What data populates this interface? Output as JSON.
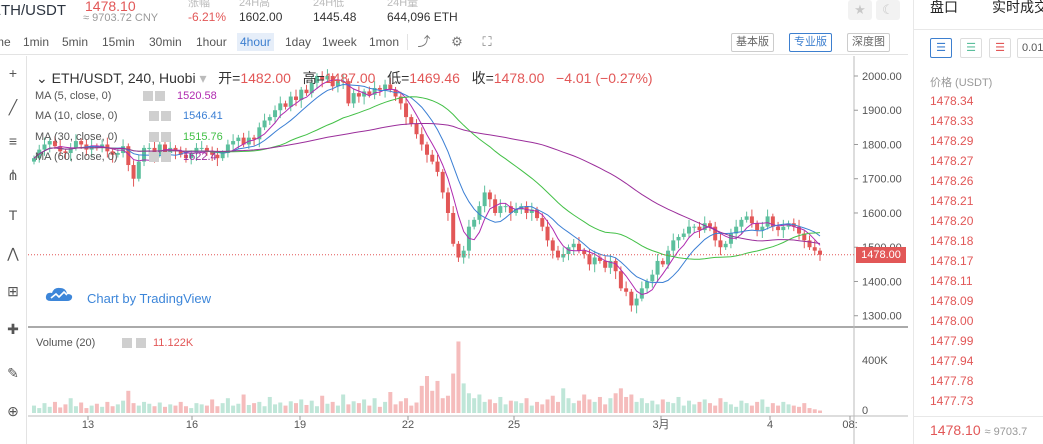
{
  "ticker": {
    "pair": "ETH/USDT",
    "last_price": "1478.10",
    "cny": "≈ 9703.72 CNY",
    "stats": [
      {
        "label": "涨幅",
        "value": "-6.21%",
        "color": "#e25757"
      },
      {
        "label": "24H高",
        "value": "1602.00"
      },
      {
        "label": "24H低",
        "value": "1445.48"
      },
      {
        "label": "24H量",
        "value": "644,096 ETH"
      }
    ]
  },
  "toolbar": {
    "timeframes": [
      "me",
      "1min",
      "5min",
      "15min",
      "30min",
      "1hour",
      "4hour",
      "1day",
      "1week",
      "1mon"
    ],
    "active_timeframe": "4hour",
    "versions": [
      "基本版",
      "专业版",
      "深度图"
    ],
    "active_version": "专业版"
  },
  "legend": {
    "symbol": "ETH/USDT, 240, Huobi",
    "open_label": "开=",
    "open": "1482.00",
    "high_label": "高=",
    "high": "1487.00",
    "low_label": "低=",
    "low": "1469.46",
    "close_label": "收=",
    "close": "1478.00",
    "change": "−4.01 (−0.27%)"
  },
  "indicators": [
    {
      "name": "MA (5, close, 0)",
      "value": "1520.58",
      "color": "#b02bb0"
    },
    {
      "name": "MA (10, close, 0)",
      "value": "1546.41",
      "color": "#3b7fd4"
    },
    {
      "name": "MA (30, close, 0)",
      "value": "1515.76",
      "color": "#43c047"
    },
    {
      "name": "MA (60, close, 0)",
      "value": "1622.4",
      "color": "#9b2e9b"
    }
  ],
  "volume": {
    "name": "Volume (20)",
    "value": "11.122K"
  },
  "brand": "Chart by TradingView",
  "price_badge": "1478.00",
  "chart_data": {
    "type": "candlestick",
    "y_ticks": [
      "2000.00",
      "1900.00",
      "1800.00",
      "1700.00",
      "1600.00",
      "1500.00",
      "1400.00",
      "1300.00"
    ],
    "ylim": [
      1270,
      2035
    ],
    "x_ticks": [
      "13",
      "16",
      "19",
      "22",
      "25",
      "3月",
      "4",
      "08:"
    ],
    "volume_ticks": [
      "400K",
      "0"
    ],
    "volume_max": 600,
    "colors": {
      "up": "#5cbf9d",
      "down": "#e25757",
      "ma5": "#b02bb0",
      "ma10": "#3b7fd4",
      "ma30": "#43c047",
      "ma60": "#9b2e9b"
    },
    "closes": [
      1760,
      1785,
      1800,
      1810,
      1795,
      1780,
      1775,
      1790,
      1810,
      1800,
      1785,
      1795,
      1790,
      1800,
      1780,
      1770,
      1775,
      1795,
      1740,
      1700,
      1750,
      1790,
      1790,
      1770,
      1800,
      1775,
      1790,
      1780,
      1770,
      1760,
      1775,
      1790,
      1790,
      1780,
      1770,
      1760,
      1775,
      1800,
      1810,
      1820,
      1800,
      1820,
      1815,
      1850,
      1870,
      1880,
      1900,
      1920,
      1910,
      1940,
      1930,
      1960,
      1950,
      1980,
      2000,
      1990,
      2000,
      1970,
      1985,
      1985,
      1920,
      1950,
      1940,
      1955,
      1945,
      1965,
      1960,
      1975,
      1960,
      1940,
      1920,
      1880,
      1860,
      1830,
      1800,
      1770,
      1750,
      1720,
      1660,
      1600,
      1510,
      1470,
      1490,
      1560,
      1580,
      1620,
      1660,
      1640,
      1600,
      1620,
      1620,
      1600,
      1610,
      1620,
      1600,
      1610,
      1585,
      1560,
      1520,
      1490,
      1470,
      1480,
      1500,
      1510,
      1490,
      1480,
      1450,
      1470,
      1460,
      1440,
      1460,
      1430,
      1380,
      1370,
      1330,
      1350,
      1380,
      1400,
      1420,
      1460,
      1450,
      1490,
      1520,
      1530,
      1540,
      1560,
      1560,
      1550,
      1570,
      1560,
      1520,
      1500,
      1510,
      1540,
      1560,
      1580,
      1590,
      1570,
      1550,
      1560,
      1590,
      1560,
      1550,
      1560,
      1570,
      1560,
      1540,
      1520,
      1500,
      1490,
      1478
    ],
    "volumes": [
      60,
      40,
      80,
      50,
      90,
      45,
      70,
      120,
      55,
      85,
      40,
      60,
      75,
      50,
      90,
      55,
      70,
      100,
      180,
      80,
      60,
      90,
      75,
      55,
      85,
      50,
      70,
      60,
      90,
      55,
      40,
      80,
      70,
      60,
      110,
      55,
      80,
      120,
      60,
      75,
      150,
      65,
      80,
      90,
      55,
      130,
      70,
      85,
      60,
      95,
      80,
      110,
      65,
      100,
      55,
      140,
      75,
      90,
      60,
      150,
      70,
      95,
      80,
      110,
      60,
      120,
      50,
      90,
      170,
      70,
      95,
      120,
      60,
      85,
      220,
      300,
      180,
      260,
      120,
      140,
      320,
      580,
      240,
      160,
      120,
      150,
      90,
      110,
      80,
      130,
      70,
      100,
      95,
      80,
      120,
      60,
      90,
      70,
      110,
      140,
      90,
      200,
      120,
      80,
      100,
      150,
      110,
      90,
      130,
      70,
      120,
      160,
      200,
      130,
      150,
      90,
      120,
      80,
      100,
      70,
      110,
      90,
      80,
      130,
      60,
      100,
      70,
      90,
      110,
      80,
      60,
      120,
      90,
      70,
      50,
      100,
      80,
      60,
      90,
      110,
      50,
      80,
      60,
      90,
      70,
      60,
      50,
      80,
      40,
      30,
      20
    ]
  },
  "draw_tools": [
    "cursor-icon",
    "trendline-icon",
    "fib-icon",
    "pitchfork-icon",
    "text-icon",
    "pattern-icon",
    "measure-icon",
    "arrow-icon",
    "ruler-icon",
    "zoom-icon"
  ],
  "book": {
    "tabs": [
      "盘口",
      "实时成交"
    ],
    "depth": "0.01",
    "col_header": "价格 (USDT)",
    "asks": [
      "1478.34",
      "1478.33",
      "1478.29",
      "1478.27",
      "1478.26",
      "1478.21",
      "1478.20",
      "1478.18",
      "1478.17",
      "1478.11",
      "1478.09",
      "1478.00",
      "1477.99",
      "1477.94",
      "1477.78",
      "1477.73"
    ],
    "last": "1478.10",
    "last_cny": "≈ 9703.7"
  }
}
